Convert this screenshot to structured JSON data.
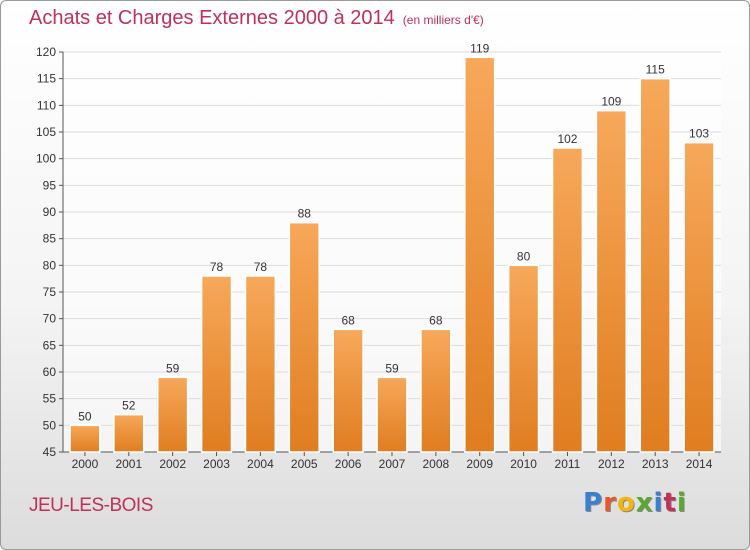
{
  "title": "Achats et Charges Externes 2000 à 2014",
  "subtitle": "(en milliers d'€)",
  "commune": "JEU-LES-BOIS",
  "logo": {
    "text": "Proxiti",
    "letter_colors": [
      "#3a7fd0",
      "#e8592a",
      "#f2b60e",
      "#5aa832",
      "#3a7fd0",
      "#c0305a",
      "#5aa832"
    ]
  },
  "colors": {
    "title": "#c0305a",
    "bar_light": "#f7a85a",
    "bar_dark": "#e07d20",
    "grid": "#dddddd"
  },
  "chart_data": {
    "type": "bar",
    "categories": [
      "2000",
      "2001",
      "2002",
      "2003",
      "2004",
      "2005",
      "2006",
      "2007",
      "2008",
      "2009",
      "2010",
      "2011",
      "2012",
      "2013",
      "2014"
    ],
    "values": [
      50,
      52,
      59,
      78,
      78,
      88,
      68,
      59,
      68,
      119,
      80,
      102,
      109,
      115,
      103
    ],
    "ylim": [
      45,
      120
    ],
    "yticks": [
      45,
      50,
      55,
      60,
      65,
      70,
      75,
      80,
      85,
      90,
      95,
      100,
      105,
      110,
      115,
      120
    ],
    "grid": true,
    "data_labels": true
  }
}
